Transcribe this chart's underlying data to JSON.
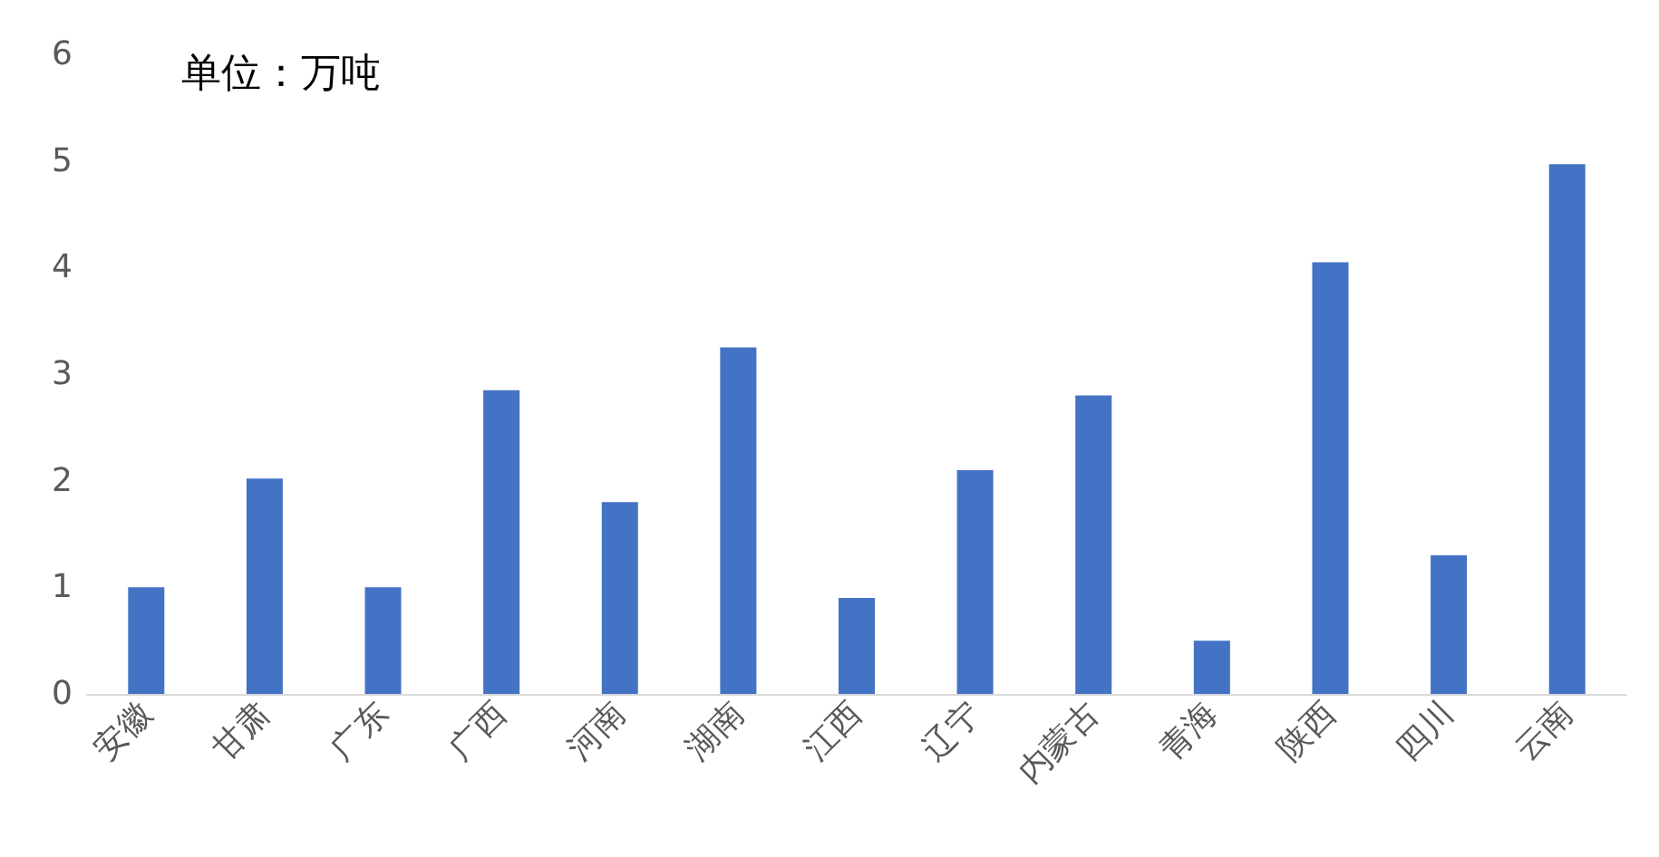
{
  "chart_data": {
    "type": "bar",
    "annotations": [
      "单位：万吨"
    ],
    "categories": [
      "安徽",
      "甘肃",
      "广东",
      "广西",
      "河南",
      "湖南",
      "江西",
      "辽宁",
      "内蒙古",
      "青海",
      "陕西",
      "四川",
      "云南"
    ],
    "values": [
      1.0,
      2.02,
      1.0,
      2.85,
      1.8,
      3.25,
      0.9,
      2.1,
      2.8,
      0.5,
      4.05,
      1.3,
      4.97
    ],
    "color": "#4472c4",
    "ylim": [
      0,
      6
    ],
    "yticks": [
      0,
      1,
      2,
      3,
      4,
      5,
      6
    ]
  }
}
